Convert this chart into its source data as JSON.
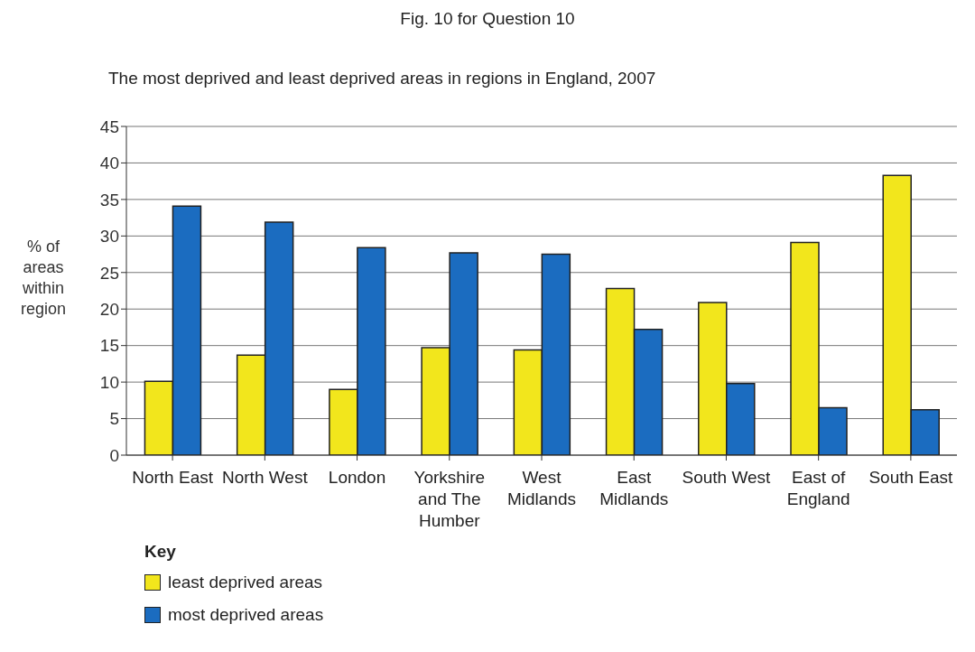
{
  "chart_data": {
    "type": "bar",
    "title": "Fig. 10 for Question 10",
    "subtitle": "The most deprived and least deprived areas in regions in England, 2007",
    "ylabel": "% of areas within region",
    "legend_title": "Key",
    "categories": [
      "North East",
      "North West",
      "London",
      "Yorkshire and The Humber",
      "West Midlands",
      "East Midlands",
      "South West",
      "East of England",
      "South East"
    ],
    "series": [
      {
        "name": "least deprived areas",
        "color": "#f2e61c",
        "values": [
          10.1,
          13.7,
          9.0,
          14.7,
          14.4,
          22.8,
          20.9,
          29.1,
          38.3
        ]
      },
      {
        "name": "most deprived areas",
        "color": "#1b6cc0",
        "values": [
          34.1,
          31.9,
          28.4,
          27.7,
          27.5,
          17.2,
          9.8,
          6.5,
          6.2
        ]
      }
    ],
    "ylim": [
      0,
      45
    ],
    "yticks": [
      0,
      5,
      10,
      15,
      20,
      25,
      30,
      35,
      40,
      45
    ],
    "grid": "y",
    "legend": "bottom left"
  }
}
